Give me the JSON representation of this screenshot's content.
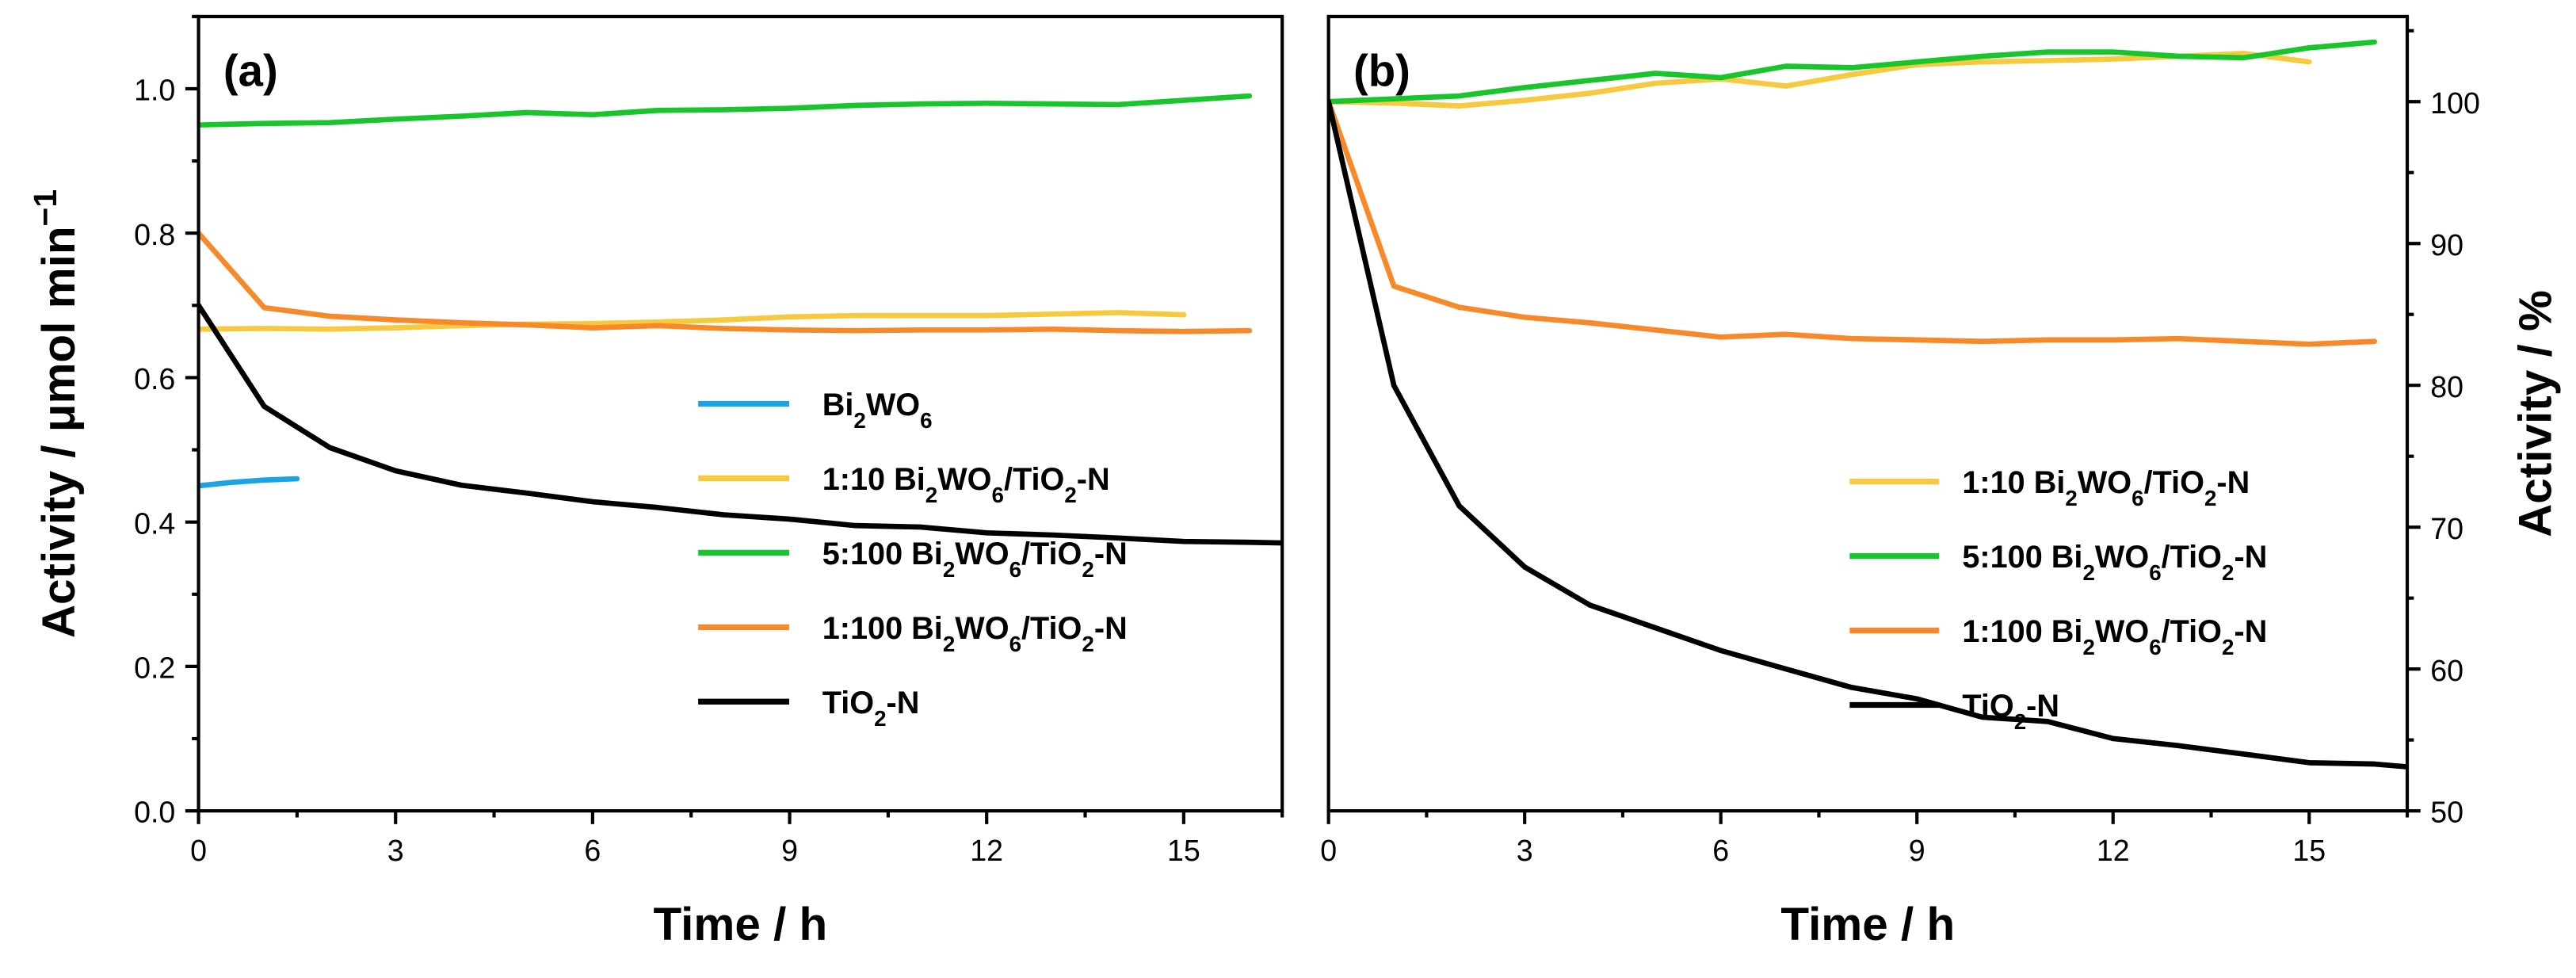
{
  "chart_data": [
    {
      "type": "line",
      "panel_label": "(a)",
      "title": "",
      "xlabel": "Time / h",
      "ylabel_parts": {
        "text": "Activity / μmol min",
        "sup": "−1"
      },
      "xlim": [
        0,
        16.5
      ],
      "ylim": [
        0,
        1.1
      ],
      "x_ticks": [
        0,
        3,
        6,
        9,
        12,
        15
      ],
      "y_ticks": [
        0.0,
        0.2,
        0.4,
        0.6,
        0.8,
        1.0
      ],
      "y_tick_labels": [
        "0.0",
        "0.2",
        "0.4",
        "0.6",
        "0.8",
        "1.0"
      ],
      "legend_position": "center-right",
      "series": [
        {
          "name": "Bi₂WO₆",
          "legend_parts": [
            [
              "Bi",
              ""
            ],
            [
              "2",
              "sub"
            ],
            [
              "WO",
              ""
            ],
            [
              "6",
              "sub"
            ]
          ],
          "color": "#1ca3e3",
          "x": [
            0,
            0.5,
            1,
            1.5
          ],
          "y": [
            0.45,
            0.455,
            0.458,
            0.46
          ]
        },
        {
          "name": "1:10 Bi₂WO₆/TiO₂-N",
          "legend_parts": [
            [
              "1:10 Bi",
              ""
            ],
            [
              "2",
              "sub"
            ],
            [
              "WO",
              ""
            ],
            [
              "6",
              "sub"
            ],
            [
              "/TiO",
              ""
            ],
            [
              "2",
              "sub"
            ],
            [
              "-N",
              ""
            ]
          ],
          "color": "#f7c93e",
          "x": [
            0,
            1,
            2,
            3,
            4,
            5,
            6,
            7,
            8,
            9,
            10,
            11,
            12,
            13,
            14,
            15
          ],
          "y": [
            0.667,
            0.668,
            0.667,
            0.669,
            0.672,
            0.674,
            0.675,
            0.677,
            0.68,
            0.684,
            0.686,
            0.686,
            0.686,
            0.688,
            0.69,
            0.687
          ]
        },
        {
          "name": "5:100 Bi₂WO₆/TiO₂-N",
          "legend_parts": [
            [
              "5:100 Bi",
              ""
            ],
            [
              "2",
              "sub"
            ],
            [
              "WO",
              ""
            ],
            [
              "6",
              "sub"
            ],
            [
              "/TiO",
              ""
            ],
            [
              "2",
              "sub"
            ],
            [
              "-N",
              ""
            ]
          ],
          "color": "#19c52c",
          "x": [
            0,
            1,
            2,
            3,
            4,
            5,
            6,
            7,
            8,
            9,
            10,
            11,
            12,
            13,
            14,
            15,
            16
          ],
          "y": [
            0.95,
            0.952,
            0.953,
            0.958,
            0.962,
            0.967,
            0.964,
            0.97,
            0.971,
            0.973,
            0.977,
            0.979,
            0.98,
            0.979,
            0.978,
            0.984,
            0.99
          ]
        },
        {
          "name": "1:100 Bi₂WO₆/TiO₂-N",
          "legend_parts": [
            [
              "1:100 Bi",
              ""
            ],
            [
              "2",
              "sub"
            ],
            [
              "WO",
              ""
            ],
            [
              "6",
              "sub"
            ],
            [
              "/TiO",
              ""
            ],
            [
              "2",
              "sub"
            ],
            [
              "-N",
              ""
            ]
          ],
          "color": "#f7892a",
          "x": [
            0,
            1,
            2,
            3,
            4,
            5,
            6,
            7,
            8,
            9,
            10,
            11,
            12,
            13,
            14,
            15,
            16
          ],
          "y": [
            0.8,
            0.697,
            0.685,
            0.68,
            0.676,
            0.673,
            0.669,
            0.672,
            0.668,
            0.666,
            0.665,
            0.666,
            0.666,
            0.667,
            0.665,
            0.664,
            0.665
          ]
        },
        {
          "name": "TiO₂-N",
          "legend_parts": [
            [
              "TiO",
              ""
            ],
            [
              "2",
              "sub"
            ],
            [
              "-N",
              ""
            ]
          ],
          "color": "#000000",
          "x": [
            0,
            1,
            2,
            3,
            4,
            5,
            6,
            7,
            8,
            9,
            10,
            11,
            12,
            13,
            14,
            15,
            16,
            16.5
          ],
          "y": [
            0.7,
            0.56,
            0.503,
            0.471,
            0.451,
            0.44,
            0.428,
            0.42,
            0.41,
            0.404,
            0.395,
            0.393,
            0.385,
            0.382,
            0.378,
            0.373,
            0.372,
            0.371
          ]
        }
      ]
    },
    {
      "type": "line",
      "panel_label": "(b)",
      "title": "",
      "xlabel": "Time / h",
      "ylabel": "Activity / %",
      "xlim": [
        0,
        16.5
      ],
      "ylim": [
        50,
        106
      ],
      "x_ticks": [
        0,
        3,
        6,
        9,
        12,
        15
      ],
      "y_ticks": [
        50,
        60,
        70,
        80,
        90,
        100
      ],
      "y_tick_labels": [
        "50",
        "60",
        "70",
        "80",
        "90",
        "100"
      ],
      "y_axis_side": "right",
      "legend_position": "center-right",
      "series": [
        {
          "name": "1:10 Bi₂WO₆/TiO₂-N",
          "legend_parts": [
            [
              "1:10 Bi",
              ""
            ],
            [
              "2",
              "sub"
            ],
            [
              "WO",
              ""
            ],
            [
              "6",
              "sub"
            ],
            [
              "/TiO",
              ""
            ],
            [
              "2",
              "sub"
            ],
            [
              "-N",
              ""
            ]
          ],
          "color": "#f7c93e",
          "x": [
            0,
            1,
            2,
            3,
            4,
            5,
            6,
            7,
            8,
            9,
            10,
            11,
            12,
            13,
            14,
            15
          ],
          "y": [
            100,
            99.9,
            99.7,
            100.1,
            100.6,
            101.3,
            101.6,
            101.1,
            101.9,
            102.6,
            102.8,
            102.9,
            103.0,
            103.2,
            103.4,
            102.8
          ]
        },
        {
          "name": "5:100 Bi₂WO₆/TiO₂-N",
          "legend_parts": [
            [
              "5:100 Bi",
              ""
            ],
            [
              "2",
              "sub"
            ],
            [
              "WO",
              ""
            ],
            [
              "6",
              "sub"
            ],
            [
              "/TiO",
              ""
            ],
            [
              "2",
              "sub"
            ],
            [
              "-N",
              ""
            ]
          ],
          "color": "#19c52c",
          "x": [
            0,
            1,
            2,
            3,
            4,
            5,
            6,
            7,
            8,
            9,
            10,
            11,
            12,
            13,
            14,
            15,
            16
          ],
          "y": [
            100,
            100.2,
            100.4,
            101.0,
            101.5,
            102.0,
            101.7,
            102.5,
            102.4,
            102.8,
            103.2,
            103.5,
            103.5,
            103.2,
            103.1,
            103.8,
            104.2
          ]
        },
        {
          "name": "1:100 Bi₂WO₆/TiO₂-N",
          "legend_parts": [
            [
              "1:100 Bi",
              ""
            ],
            [
              "2",
              "sub"
            ],
            [
              "WO",
              ""
            ],
            [
              "6",
              "sub"
            ],
            [
              "/TiO",
              ""
            ],
            [
              "2",
              "sub"
            ],
            [
              "-N",
              ""
            ]
          ],
          "color": "#f7892a",
          "x": [
            0,
            1,
            2,
            3,
            4,
            5,
            6,
            7,
            8,
            9,
            10,
            11,
            12,
            13,
            14,
            15,
            16
          ],
          "y": [
            100,
            87.0,
            85.5,
            84.8,
            84.4,
            83.9,
            83.4,
            83.6,
            83.3,
            83.2,
            83.1,
            83.2,
            83.2,
            83.3,
            83.1,
            82.9,
            83.1
          ]
        },
        {
          "name": "TiO₂-N",
          "legend_parts": [
            [
              "TiO",
              ""
            ],
            [
              "2",
              "sub"
            ],
            [
              "-N",
              ""
            ]
          ],
          "color": "#000000",
          "x": [
            0,
            1,
            2,
            3,
            4,
            5,
            6,
            7,
            8,
            9,
            10,
            11,
            12,
            13,
            14,
            15,
            16,
            16.5
          ],
          "y": [
            100,
            80.0,
            71.5,
            67.2,
            64.5,
            62.9,
            61.3,
            60.0,
            58.7,
            57.9,
            56.6,
            56.3,
            55.1,
            54.6,
            54.0,
            53.4,
            53.3,
            53.1
          ]
        }
      ]
    }
  ]
}
